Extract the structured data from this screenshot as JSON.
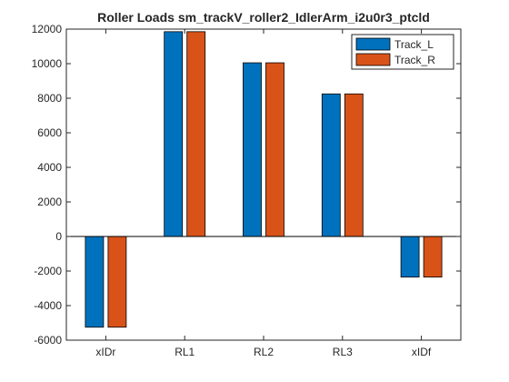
{
  "chart_data": {
    "type": "bar",
    "title": "Roller Loads sm_trackV_roller2_IdlerArm_i2u0r3_ptcld",
    "xlabel": "",
    "ylabel": "",
    "categories": [
      "xIDr",
      "RL1",
      "RL2",
      "RL3",
      "xIDf"
    ],
    "series": [
      {
        "name": "Track_L",
        "color": "#0072BD",
        "values": [
          -5250,
          11850,
          10050,
          8250,
          -2350
        ]
      },
      {
        "name": "Track_R",
        "color": "#D95319",
        "values": [
          -5250,
          11850,
          10050,
          8250,
          -2350
        ]
      }
    ],
    "ylim": [
      -6000,
      12000
    ],
    "yticks": [
      -6000,
      -4000,
      -2000,
      0,
      2000,
      4000,
      6000,
      8000,
      10000,
      12000
    ],
    "ytick_labels": [
      "-6000",
      "-4000",
      "-2000",
      "0",
      "2000",
      "4000",
      "6000",
      "8000",
      "10000",
      "12000"
    ],
    "grid": false,
    "legend_position": "top-right"
  }
}
